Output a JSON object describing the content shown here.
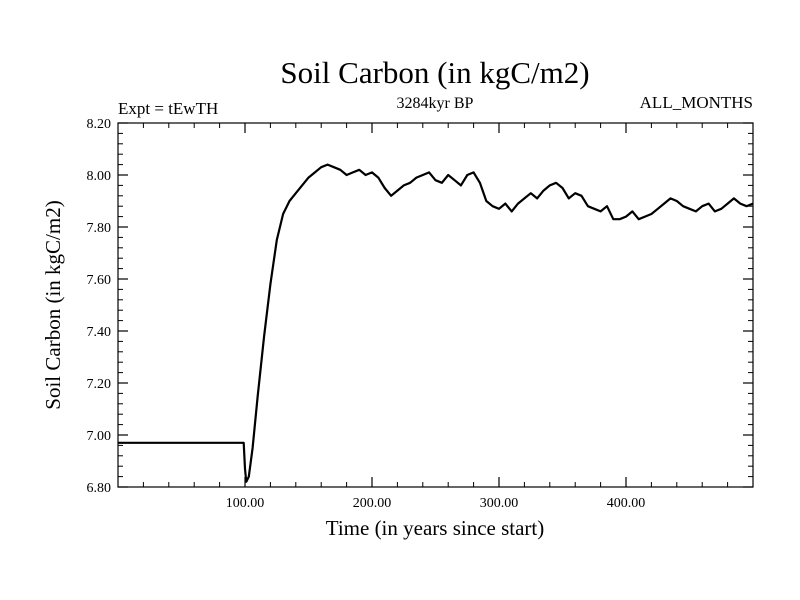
{
  "chart_data": {
    "type": "line",
    "title": "Soil Carbon (in kgC/m2)",
    "subtitle": "3284kyr BP",
    "left_label": "Expt = tEwTH",
    "right_label": "ALL_MONTHS",
    "xlabel": "Time (in years since start)",
    "ylabel": "Soil Carbon (in kgC/m2)",
    "xlim": [
      0,
      500
    ],
    "ylim": [
      6.8,
      8.2
    ],
    "x_ticks": [
      100,
      200,
      300,
      400
    ],
    "x_tick_labels": [
      "100.00",
      "200.00",
      "300.00",
      "400.00"
    ],
    "y_ticks": [
      6.8,
      7.0,
      7.2,
      7.4,
      7.6,
      7.8,
      8.0,
      8.2
    ],
    "y_tick_labels": [
      "6.80",
      "7.00",
      "7.20",
      "7.40",
      "7.60",
      "7.80",
      "8.00",
      "8.20"
    ],
    "grid": false,
    "series": [
      {
        "name": "Soil Carbon",
        "x": [
          0,
          99,
          100,
          101,
          103,
          106,
          110,
          115,
          120,
          125,
          130,
          135,
          140,
          145,
          150,
          155,
          160,
          165,
          170,
          175,
          180,
          185,
          190,
          195,
          200,
          205,
          210,
          215,
          220,
          225,
          230,
          235,
          240,
          245,
          250,
          255,
          260,
          265,
          270,
          275,
          280,
          285,
          290,
          295,
          300,
          305,
          310,
          315,
          320,
          325,
          330,
          335,
          340,
          345,
          350,
          355,
          360,
          365,
          370,
          375,
          380,
          385,
          390,
          395,
          400,
          405,
          410,
          415,
          420,
          425,
          430,
          435,
          440,
          445,
          450,
          455,
          460,
          465,
          470,
          475,
          480,
          485,
          490,
          495,
          500
        ],
        "values": [
          6.97,
          6.97,
          6.87,
          6.82,
          6.84,
          6.95,
          7.15,
          7.38,
          7.58,
          7.75,
          7.85,
          7.9,
          7.93,
          7.96,
          7.99,
          8.01,
          8.03,
          8.04,
          8.03,
          8.02,
          8.0,
          8.01,
          8.02,
          8.0,
          8.01,
          7.99,
          7.95,
          7.92,
          7.94,
          7.96,
          7.97,
          7.99,
          8.0,
          8.01,
          7.98,
          7.97,
          8.0,
          7.98,
          7.96,
          8.0,
          8.01,
          7.97,
          7.9,
          7.88,
          7.87,
          7.89,
          7.86,
          7.89,
          7.91,
          7.93,
          7.91,
          7.94,
          7.96,
          7.97,
          7.95,
          7.91,
          7.93,
          7.92,
          7.88,
          7.87,
          7.86,
          7.88,
          7.83,
          7.83,
          7.84,
          7.86,
          7.83,
          7.84,
          7.85,
          7.87,
          7.89,
          7.91,
          7.9,
          7.88,
          7.87,
          7.86,
          7.88,
          7.89,
          7.86,
          7.87,
          7.89,
          7.91,
          7.89,
          7.88,
          7.89
        ]
      }
    ]
  }
}
